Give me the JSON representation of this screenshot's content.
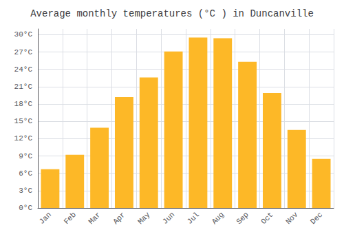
{
  "chart_data": {
    "type": "bar",
    "title": "Average monthly temperatures (°C ) in Duncanville",
    "categories": [
      "Jan",
      "Feb",
      "Mar",
      "Apr",
      "May",
      "Jun",
      "Jul",
      "Aug",
      "Sep",
      "Oct",
      "Nov",
      "Dec"
    ],
    "values": [
      6.7,
      9.2,
      13.9,
      19.2,
      22.6,
      27.1,
      29.5,
      29.4,
      25.3,
      19.9,
      13.5,
      8.5
    ],
    "color": "#FDB827",
    "ylim": [
      0,
      31
    ],
    "yticks": [
      {
        "value": 0,
        "label": "0°C"
      },
      {
        "value": 3,
        "label": "3°C"
      },
      {
        "value": 6,
        "label": "6°C"
      },
      {
        "value": 9,
        "label": "9°C"
      },
      {
        "value": 12,
        "label": "12°C"
      },
      {
        "value": 15,
        "label": "15°C"
      },
      {
        "value": 18,
        "label": "18°C"
      },
      {
        "value": 21,
        "label": "21°C"
      },
      {
        "value": 24,
        "label": "24°C"
      },
      {
        "value": 27,
        "label": "27°C"
      },
      {
        "value": 30,
        "label": "30°C"
      }
    ],
    "grid": true
  }
}
